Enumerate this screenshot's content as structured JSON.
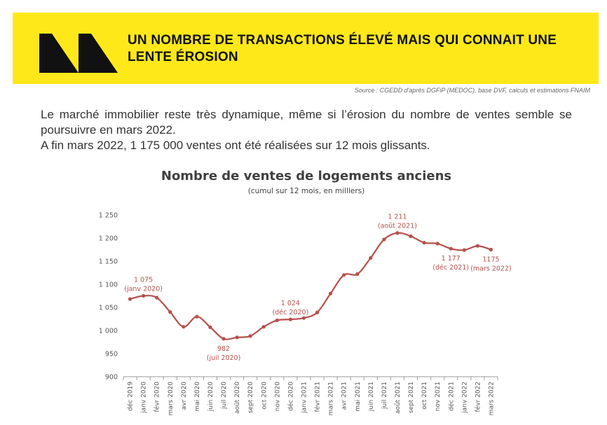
{
  "header": {
    "title": "UN NOMBRE DE TRANSACTIONS ÉLEVÉ MAIS QUI CONNAIT UNE LENTE ÉROSION",
    "source": "Source : CGEDD d'après DGFiP (MEDOC), base DVF, calculs et estimations FNAIM",
    "logo_icon": "double-chevron-logo-icon"
  },
  "intro": {
    "line1": "Le marché immobilier reste très dynamique, même si l’érosion du nombre de ventes semble se poursuivre en mars 2022.",
    "line2": "A fin mars 2022, 1 175 000 ventes ont été réalisées sur 12 mois glissants."
  },
  "colors": {
    "banner": "#FFE81A",
    "line": "#B5504B",
    "text": "#333333"
  },
  "chart_data": {
    "type": "line",
    "title": "Nombre de ventes de logements anciens",
    "subtitle": "(cumul sur 12 mois, en milliers)",
    "x": [
      "déc 2019",
      "janv 2020",
      "févr 2020",
      "mars 2020",
      "avr 2020",
      "mai 2020",
      "juin 2020",
      "juil 2020",
      "août 2020",
      "sept 2020",
      "oct 2020",
      "nov 2020",
      "déc 2020",
      "janv 2021",
      "févr 2021",
      "mars 2021",
      "avr 2021",
      "mai 2021",
      "juin 2021",
      "juil 2021",
      "août 2021",
      "sept 2021",
      "oct 2021",
      "nov 2021",
      "déc 2021",
      "janv 2022",
      "févr 2022",
      "mars 2022"
    ],
    "series": [
      {
        "values": [
          1068,
          1075,
          1071,
          1040,
          1008,
          1030,
          1007,
          982,
          985,
          988,
          1008,
          1022,
          1024,
          1027,
          1039,
          1080,
          1120,
          1122,
          1157,
          1197,
          1211,
          1204,
          1190,
          1188,
          1177,
          1174,
          1183,
          1175
        ]
      }
    ],
    "ylim": [
      900,
      1250
    ],
    "yticks": [
      900,
      950,
      1000,
      1050,
      1100,
      1150,
      1200,
      1250
    ],
    "ytick_labels": [
      "900",
      "950",
      "1 000",
      "1 050",
      "1 100",
      "1 150",
      "1 200",
      "1 250"
    ],
    "grid": false,
    "annotations": [
      {
        "index": 1,
        "value": "1 075",
        "label": "(janv 2020)",
        "position": "above"
      },
      {
        "index": 7,
        "value": "982",
        "label": "(juil 2020)",
        "position": "below"
      },
      {
        "index": 12,
        "value": "1 024",
        "label": "(déc 2020)",
        "position": "above"
      },
      {
        "index": 20,
        "value": "1 211",
        "label": "(août 2021)",
        "position": "above"
      },
      {
        "index": 24,
        "value": "1 177",
        "label": "(déc 2021)",
        "position": "below"
      },
      {
        "index": 27,
        "value": "1175",
        "label": "(mars 2022)",
        "position": "below"
      }
    ]
  }
}
